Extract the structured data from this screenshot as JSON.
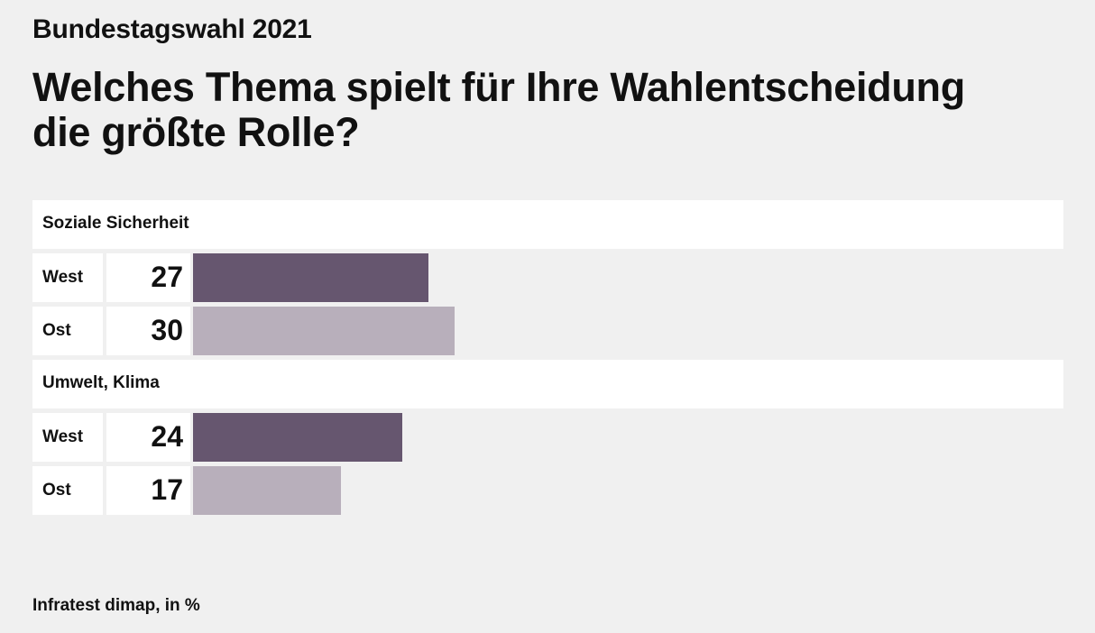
{
  "header": {
    "kicker": "Bundestagswahl 2021",
    "title_line1": "Welches Thema spielt für Ihre Wahlentscheidung",
    "title_line2": "die größte Rolle?"
  },
  "footer": {
    "source": "Infratest dimap, in %"
  },
  "colors": {
    "west": "#66566f",
    "ost": "#b8afbb",
    "background": "#f0f0f0",
    "panel": "#ffffff"
  },
  "chart_data": {
    "type": "bar",
    "orientation": "horizontal",
    "unit": "%",
    "xlim": [
      0,
      100
    ],
    "categories": [
      "Soziale Sicherheit",
      "Umwelt, Klima"
    ],
    "series": [
      {
        "name": "West",
        "values": [
          27,
          24
        ]
      },
      {
        "name": "Ost",
        "values": [
          30,
          17
        ]
      }
    ],
    "data_labels": true,
    "grid": false,
    "legend": "none"
  }
}
